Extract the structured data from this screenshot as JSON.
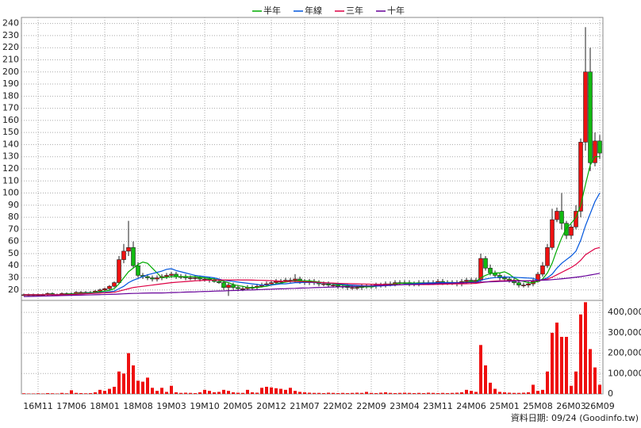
{
  "chart_data": {
    "type": "candlestick",
    "note": "資料日期: 09/24 (Goodinfo.tw)",
    "categories": [
      null,
      null,
      null,
      "16M11",
      null,
      null,
      null,
      null,
      null,
      null,
      "17M06",
      null,
      null,
      null,
      null,
      null,
      null,
      "18M01",
      null,
      null,
      null,
      null,
      null,
      null,
      "18M08",
      null,
      null,
      null,
      null,
      null,
      null,
      "19M03",
      null,
      null,
      null,
      null,
      null,
      null,
      "19M10",
      null,
      null,
      null,
      null,
      null,
      null,
      "20M05",
      null,
      null,
      null,
      null,
      null,
      null,
      "20M12",
      null,
      null,
      null,
      null,
      null,
      null,
      "21M07",
      null,
      null,
      null,
      null,
      null,
      null,
      "22M02",
      null,
      null,
      null,
      null,
      null,
      null,
      "22M09",
      null,
      null,
      null,
      null,
      null,
      null,
      "23M04",
      null,
      null,
      null,
      null,
      null,
      null,
      "23M11",
      null,
      null,
      null,
      null,
      null,
      null,
      "24M06",
      null,
      null,
      null,
      null,
      null,
      null,
      "25M01",
      null,
      null,
      null,
      null,
      null,
      null,
      "25M08",
      null,
      null,
      null,
      null,
      null,
      null,
      "26M03",
      null,
      null,
      null,
      null,
      null,
      "26M09"
    ],
    "open": [
      16,
      16,
      16,
      16,
      16,
      16,
      17,
      16,
      16,
      17,
      17,
      17,
      18,
      18,
      18,
      18,
      19,
      20,
      21,
      23,
      26,
      45,
      52,
      55,
      40,
      32,
      31,
      30,
      29,
      30,
      31,
      32,
      33,
      31,
      31,
      30,
      30,
      30,
      29,
      29,
      28,
      27,
      26,
      22,
      24,
      22,
      21,
      21,
      22,
      22,
      23,
      24,
      25,
      26,
      27,
      27,
      28,
      28,
      29,
      27,
      26,
      27,
      26,
      25,
      25,
      24,
      24,
      23,
      23,
      22,
      22,
      22,
      23,
      23,
      23,
      24,
      24,
      25,
      25,
      26,
      26,
      26,
      25,
      25,
      26,
      26,
      26,
      26,
      27,
      26,
      26,
      26,
      25,
      27,
      28,
      27,
      28,
      46,
      38,
      34,
      32,
      30,
      29,
      28,
      26,
      24,
      24,
      25,
      27,
      33,
      40,
      55,
      78,
      85,
      75,
      65,
      72,
      85,
      142,
      200,
      125,
      143
    ],
    "high": [
      17,
      17,
      17,
      17,
      17,
      18,
      18,
      17,
      18,
      18,
      18,
      19,
      19,
      19,
      19,
      20,
      21,
      22,
      24,
      27,
      48,
      58,
      77,
      60,
      43,
      34,
      33,
      32,
      32,
      33,
      34,
      35,
      35,
      33,
      33,
      32,
      32,
      32,
      31,
      31,
      30,
      29,
      28,
      26,
      26,
      24,
      23,
      24,
      24,
      25,
      26,
      27,
      28,
      29,
      29,
      30,
      30,
      33,
      31,
      29,
      29,
      29,
      28,
      27,
      27,
      26,
      26,
      25,
      25,
      24,
      24,
      25,
      25,
      25,
      26,
      26,
      27,
      27,
      28,
      28,
      28,
      28,
      27,
      28,
      28,
      28,
      28,
      29,
      29,
      28,
      28,
      28,
      29,
      30,
      30,
      30,
      50,
      48,
      41,
      36,
      34,
      32,
      31,
      30,
      28,
      26,
      27,
      29,
      35,
      43,
      58,
      87,
      88,
      100,
      77,
      74,
      90,
      145,
      237,
      220,
      150,
      148
    ],
    "low": [
      15,
      15,
      15,
      15,
      15,
      15,
      15,
      15,
      15,
      16,
      16,
      16,
      17,
      17,
      17,
      17,
      18,
      19,
      20,
      22,
      25,
      42,
      48,
      38,
      30,
      29,
      28,
      27,
      27,
      28,
      29,
      30,
      29,
      29,
      28,
      28,
      28,
      27,
      27,
      26,
      26,
      25,
      20,
      15,
      20,
      19,
      19,
      20,
      20,
      20,
      22,
      23,
      24,
      25,
      25,
      26,
      26,
      26,
      25,
      24,
      24,
      24,
      23,
      23,
      22,
      22,
      21,
      21,
      20,
      20,
      20,
      20,
      21,
      21,
      21,
      22,
      22,
      23,
      23,
      24,
      24,
      23,
      23,
      23,
      24,
      24,
      24,
      24,
      24,
      24,
      24,
      23,
      23,
      25,
      25,
      25,
      27,
      36,
      32,
      30,
      28,
      27,
      26,
      24,
      22,
      22,
      22,
      23,
      26,
      31,
      38,
      53,
      76,
      70,
      62,
      62,
      70,
      80,
      135,
      118,
      122,
      128
    ],
    "close": [
      16,
      16,
      16,
      16,
      16,
      17,
      16,
      16,
      17,
      17,
      17,
      18,
      18,
      18,
      18,
      19,
      20,
      21,
      23,
      26,
      45,
      52,
      55,
      40,
      32,
      31,
      30,
      29,
      30,
      31,
      32,
      33,
      31,
      31,
      30,
      30,
      30,
      29,
      29,
      28,
      27,
      26,
      22,
      24,
      22,
      21,
      21,
      22,
      22,
      23,
      24,
      25,
      26,
      27,
      27,
      28,
      28,
      29,
      27,
      26,
      27,
      26,
      25,
      25,
      24,
      24,
      23,
      23,
      22,
      22,
      22,
      23,
      23,
      23,
      24,
      24,
      25,
      25,
      26,
      26,
      26,
      25,
      25,
      26,
      26,
      26,
      26,
      27,
      26,
      26,
      26,
      25,
      27,
      28,
      27,
      28,
      46,
      38,
      34,
      32,
      30,
      29,
      28,
      26,
      24,
      24,
      25,
      27,
      33,
      40,
      55,
      78,
      85,
      75,
      65,
      72,
      85,
      142,
      200,
      125,
      143,
      133
    ],
    "up_color": "#ee1111",
    "down_color": "#11bb11",
    "ylim": [
      12,
      245
    ],
    "yticks": [
      20,
      30,
      40,
      50,
      60,
      70,
      80,
      90,
      100,
      110,
      120,
      130,
      140,
      150,
      160,
      170,
      180,
      190,
      200,
      210,
      220,
      230,
      240
    ],
    "grid": true,
    "legend": "top",
    "series": [
      {
        "name": "半年",
        "color": "#00aa00",
        "values": [
          16,
          16,
          16,
          16,
          16,
          16,
          16,
          16,
          16,
          16.5,
          16.7,
          17,
          17,
          17.3,
          17.7,
          18,
          18.5,
          19,
          19.7,
          21,
          25,
          30,
          35,
          38,
          41,
          43,
          42,
          38,
          34,
          30,
          30.5,
          31,
          31,
          31,
          31,
          31,
          31,
          30.5,
          30,
          29.5,
          29,
          28,
          27,
          26,
          24.5,
          23.5,
          23,
          22,
          22,
          22,
          22.5,
          23,
          24,
          25,
          25.5,
          26.5,
          27,
          27.5,
          27.5,
          27.5,
          27.5,
          27,
          26.5,
          26,
          25.5,
          25,
          24.5,
          24,
          23.5,
          23,
          22.7,
          22.5,
          22.5,
          22.5,
          23,
          23.5,
          24,
          24.5,
          25,
          25.5,
          25.7,
          25.8,
          25.7,
          25.7,
          25.7,
          25.8,
          25.8,
          26,
          26,
          26.2,
          26.2,
          26,
          26.2,
          26.3,
          26.5,
          26.8,
          30,
          32,
          33.5,
          34,
          34,
          35,
          33,
          30,
          28,
          27,
          26,
          26,
          27,
          29,
          34,
          42,
          53,
          63,
          71,
          75,
          80,
          90,
          107,
          123,
          130,
          130
        ]
      },
      {
        "name": "年線",
        "color": "#0055dd",
        "values": [
          16,
          16,
          16,
          16,
          16,
          16,
          16,
          16,
          16,
          16,
          16.3,
          16.5,
          16.7,
          17,
          17.2,
          17.4,
          17.7,
          18,
          18.5,
          19,
          21,
          23,
          26,
          28,
          29.5,
          31,
          32.5,
          33.5,
          34.5,
          35.5,
          37,
          37.5,
          36,
          35,
          34,
          33,
          32,
          31.5,
          31,
          30.5,
          30,
          29,
          28,
          27.5,
          27,
          26.5,
          26,
          25.5,
          25,
          24.5,
          24,
          24,
          24,
          24.5,
          25,
          25,
          25.5,
          26,
          26,
          26.2,
          26.2,
          26,
          26,
          25.8,
          25.6,
          25.3,
          25,
          24.6,
          24.2,
          24,
          23.7,
          23.5,
          23.3,
          23.2,
          23.2,
          23.3,
          23.5,
          23.7,
          24,
          24.3,
          24.6,
          24.9,
          25.1,
          25.3,
          25.5,
          25.7,
          25.8,
          25.9,
          26,
          26,
          26,
          26,
          26,
          26.1,
          26.2,
          26.4,
          28,
          29,
          29.7,
          30.2,
          30.5,
          30.7,
          30.6,
          30.4,
          30.2,
          30,
          29.8,
          29.6,
          28,
          28.5,
          30,
          33,
          38,
          42,
          45,
          48,
          52,
          61,
          73,
          83,
          93,
          100
        ]
      },
      {
        "name": "三年",
        "color": "#dd0044",
        "values": [
          16,
          16,
          16,
          16,
          16,
          16,
          16,
          16,
          16,
          16,
          16.2,
          16.4,
          16.6,
          16.8,
          17,
          17.2,
          17.4,
          17.6,
          17.8,
          18,
          19,
          20,
          21,
          22,
          22.5,
          23,
          23.5,
          24,
          24.5,
          25,
          25.5,
          26,
          26.3,
          26.6,
          26.9,
          27.2,
          27.5,
          27.7,
          27.9,
          28,
          28.1,
          28.2,
          28.2,
          28.2,
          28.2,
          28.2,
          28.2,
          28.2,
          28.1,
          28,
          27.9,
          27.8,
          27.6,
          27.4,
          27.2,
          27,
          27,
          27,
          26.9,
          26.8,
          26.6,
          26.4,
          26.2,
          26,
          25.8,
          25.6,
          25.4,
          25.3,
          25.2,
          25.1,
          25,
          24.9,
          24.8,
          24.7,
          24.6,
          24.5,
          24.5,
          24.4,
          24.4,
          24.4,
          24.4,
          24.4,
          24.4,
          24.4,
          24.4,
          24.4,
          24.5,
          24.6,
          24.7,
          24.8,
          24.9,
          25,
          25,
          25.1,
          25.2,
          25.4,
          26,
          26.5,
          27,
          27.3,
          27.5,
          27.6,
          27.7,
          27.7,
          27.6,
          27.5,
          27.5,
          27.5,
          27.8,
          28.2,
          29,
          30.5,
          32.5,
          34.5,
          36.5,
          38.5,
          41,
          44.5,
          49,
          51.5,
          54,
          55
        ]
      },
      {
        "name": "十年",
        "color": "#660099",
        "values": [
          14.5,
          14.6,
          14.7,
          14.8,
          14.9,
          15,
          15.1,
          15.2,
          15.3,
          15.4,
          15.5,
          15.6,
          15.7,
          15.8,
          15.9,
          16,
          16.1,
          16.2,
          16.3,
          16.4,
          16.6,
          16.8,
          17,
          17.1,
          17.2,
          17.3,
          17.4,
          17.5,
          17.5,
          17.5,
          17.6,
          17.8,
          17.9,
          18,
          18.2,
          18.3,
          18.4,
          18.6,
          18.7,
          18.8,
          19,
          19.1,
          19.2,
          19.4,
          19.5,
          19.6,
          19.8,
          19.9,
          20,
          20.2,
          20.3,
          20.5,
          20.6,
          20.8,
          20.9,
          21,
          21.2,
          21.3,
          21.5,
          21.6,
          21.7,
          21.9,
          22,
          22.1,
          22.3,
          22.4,
          22.5,
          22.7,
          22.8,
          22.9,
          23,
          23.2,
          23.3,
          23.4,
          23.6,
          23.7,
          23.8,
          24,
          24.1,
          24.2,
          24.4,
          24.5,
          24.6,
          24.7,
          24.9,
          25,
          25.1,
          25.3,
          25.4,
          25.5,
          25.6,
          25.8,
          25.9,
          26,
          26.1,
          26.3,
          26.5,
          26.6,
          26.7,
          26.8,
          27,
          27.1,
          27.2,
          27.3,
          27.4,
          27.5,
          27.6,
          27.7,
          27.9,
          28,
          28.2,
          28.5,
          28.8,
          29.2,
          29.6,
          30,
          30.5,
          31,
          31.6,
          32.3,
          33,
          33.7
        ]
      }
    ],
    "volume": {
      "color": "#ee1111",
      "values": [
        3000,
        2000,
        2000,
        3000,
        2000,
        4000,
        3000,
        2000,
        5000,
        3000,
        18000,
        5000,
        4000,
        3000,
        4000,
        8000,
        20000,
        15000,
        25000,
        35000,
        110000,
        100000,
        200000,
        140000,
        65000,
        60000,
        80000,
        30000,
        15000,
        30000,
        10000,
        40000,
        8000,
        5000,
        6000,
        5000,
        4000,
        8000,
        20000,
        15000,
        8000,
        10000,
        20000,
        15000,
        8000,
        6000,
        5000,
        20000,
        8000,
        6000,
        30000,
        35000,
        32000,
        28000,
        25000,
        20000,
        30000,
        15000,
        10000,
        8000,
        6000,
        5000,
        5000,
        4000,
        6000,
        5000,
        4000,
        5000,
        4000,
        5000,
        6000,
        5000,
        10000,
        5000,
        4000,
        6000,
        8000,
        5000,
        4000,
        5000,
        6000,
        5000,
        4000,
        5000,
        4000,
        6000,
        5000,
        4000,
        5000,
        4000,
        5000,
        6000,
        8000,
        20000,
        15000,
        10000,
        240000,
        140000,
        55000,
        25000,
        10000,
        8000,
        6000,
        5000,
        5000,
        6000,
        8000,
        45000,
        15000,
        20000,
        110000,
        300000,
        350000,
        280000,
        280000,
        40000,
        110000,
        390000,
        450000,
        220000,
        130000,
        45000
      ],
      "ylim": [
        0,
        455000
      ],
      "yticks": [
        0,
        {
          "value": 100000,
          "label": "100,000"
        },
        {
          "value": 200000,
          "label": "200,000"
        },
        {
          "value": 300000,
          "label": "300,000"
        },
        {
          "value": 400000,
          "label": "400,000"
        }
      ]
    }
  }
}
